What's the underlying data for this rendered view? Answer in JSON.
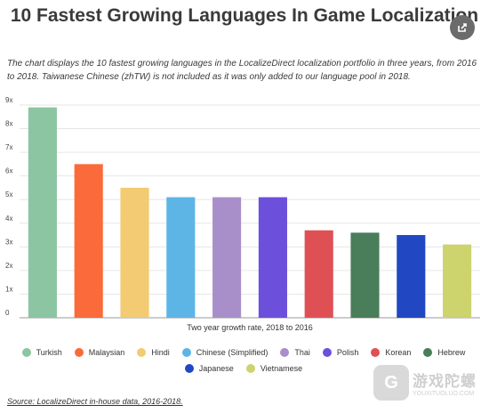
{
  "title": "10 Fastest Growing Languages In Game Localization",
  "subtitle": "The chart displays the 10 fastest growing languages in the LocalizeDirect localization portfolio in three years, from 2016 to 2018. Taiwanese Chinese (zhTW) is not included as it was only added to our language pool in 2018.",
  "share_icon": "share-icon",
  "source": "Source: LocalizeDirect in-house data, 2016-2018.",
  "watermark": {
    "cn": "游戏陀螺",
    "url": "YOUXITUOLUO.COM",
    "logo_glyph": "G"
  },
  "chart_data": {
    "type": "bar",
    "title": "10 Fastest Growing Languages In Game Localization",
    "xlabel": "Two year growth rate, 2018 to 2016",
    "ylabel": "",
    "ylim": [
      0,
      9
    ],
    "yticks": [
      "0",
      "1x",
      "2x",
      "3x",
      "4x",
      "5x",
      "6x",
      "7x",
      "8x",
      "9x"
    ],
    "grid": true,
    "legend_position": "bottom",
    "categories": [
      "Turkish",
      "Malaysian",
      "Hindi",
      "Chinese (Simplified)",
      "Thai",
      "Polish",
      "Korean",
      "Hebrew",
      "Japanese",
      "Vietnamese"
    ],
    "values": [
      8.9,
      6.5,
      5.5,
      5.1,
      5.1,
      5.1,
      3.7,
      3.6,
      3.5,
      3.1
    ],
    "colors": [
      "#8cc5a2",
      "#fb6a3a",
      "#f2cb72",
      "#5db5e6",
      "#a98fc9",
      "#6c4fdb",
      "#df5055",
      "#4a7d59",
      "#2148c2",
      "#cdd36d"
    ]
  }
}
